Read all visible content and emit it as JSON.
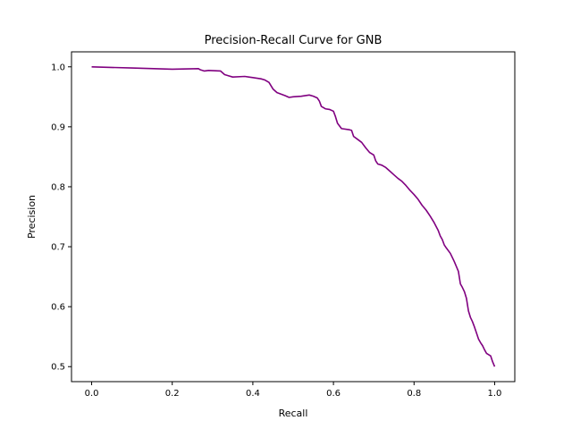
{
  "chart_data": {
    "type": "line",
    "title": "Precision-Recall Curve for GNB",
    "xlabel": "Recall",
    "ylabel": "Precision",
    "xlim": [
      -0.05,
      1.05
    ],
    "ylim": [
      0.475,
      1.025
    ],
    "xticks": [
      0.0,
      0.2,
      0.4,
      0.6,
      0.8,
      1.0
    ],
    "xtick_labels": [
      "0.0",
      "0.2",
      "0.4",
      "0.6",
      "0.8",
      "1.0"
    ],
    "yticks": [
      0.5,
      0.6,
      0.7,
      0.8,
      0.9,
      1.0
    ],
    "ytick_labels": [
      "0.5",
      "0.6",
      "0.7",
      "0.8",
      "0.9",
      "1.0"
    ],
    "grid": false,
    "legend": "none",
    "series": [
      {
        "color": "#800080",
        "x": [
          0.0,
          0.1,
          0.2,
          0.265,
          0.27,
          0.28,
          0.29,
          0.32,
          0.33,
          0.35,
          0.38,
          0.39,
          0.4,
          0.42,
          0.43,
          0.44,
          0.45,
          0.46,
          0.48,
          0.49,
          0.5,
          0.52,
          0.54,
          0.55,
          0.56,
          0.565,
          0.57,
          0.58,
          0.59,
          0.6,
          0.605,
          0.61,
          0.62,
          0.64,
          0.645,
          0.65,
          0.66,
          0.67,
          0.68,
          0.69,
          0.7,
          0.705,
          0.71,
          0.72,
          0.73,
          0.74,
          0.75,
          0.76,
          0.77,
          0.78,
          0.79,
          0.8,
          0.81,
          0.82,
          0.83,
          0.84,
          0.85,
          0.86,
          0.865,
          0.87,
          0.875,
          0.88,
          0.89,
          0.9,
          0.905,
          0.91,
          0.915,
          0.92,
          0.925,
          0.93,
          0.935,
          0.94,
          0.945,
          0.95,
          0.955,
          0.96,
          0.965,
          0.97,
          0.975,
          0.98,
          0.985,
          0.99,
          0.995,
          1.0
        ],
        "y": [
          1.0,
          0.998,
          0.996,
          0.997,
          0.995,
          0.993,
          0.994,
          0.993,
          0.987,
          0.983,
          0.984,
          0.983,
          0.982,
          0.98,
          0.978,
          0.974,
          0.963,
          0.957,
          0.952,
          0.949,
          0.95,
          0.951,
          0.953,
          0.951,
          0.948,
          0.943,
          0.934,
          0.93,
          0.929,
          0.926,
          0.917,
          0.906,
          0.897,
          0.895,
          0.894,
          0.884,
          0.879,
          0.874,
          0.865,
          0.857,
          0.853,
          0.843,
          0.838,
          0.836,
          0.832,
          0.826,
          0.82,
          0.814,
          0.809,
          0.802,
          0.794,
          0.787,
          0.779,
          0.769,
          0.761,
          0.751,
          0.74,
          0.727,
          0.718,
          0.712,
          0.703,
          0.698,
          0.689,
          0.675,
          0.667,
          0.659,
          0.638,
          0.632,
          0.625,
          0.614,
          0.593,
          0.582,
          0.575,
          0.566,
          0.556,
          0.546,
          0.54,
          0.535,
          0.528,
          0.522,
          0.52,
          0.518,
          0.508,
          0.5
        ]
      }
    ]
  }
}
